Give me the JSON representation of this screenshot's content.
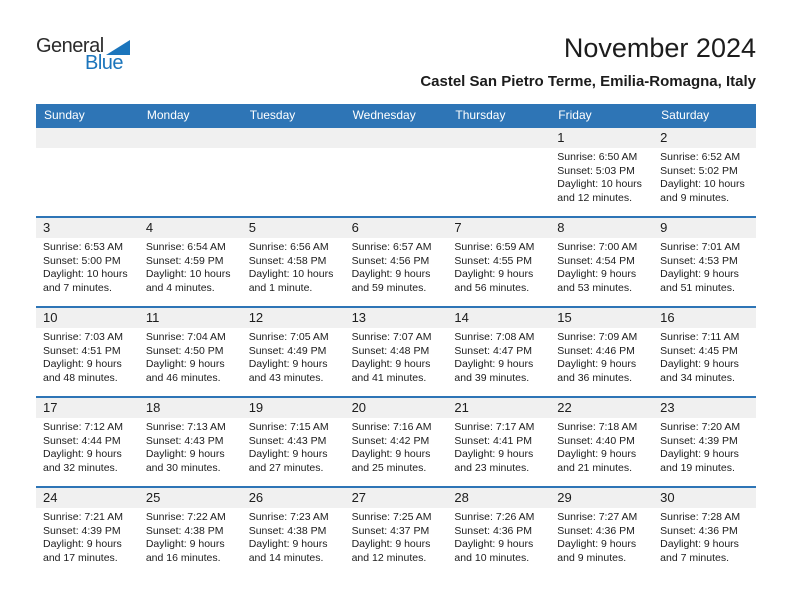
{
  "logo": {
    "general": "General",
    "blue": "Blue",
    "triangle_color": "#1b75bc"
  },
  "page": {
    "title": "November 2024",
    "subtitle": "Castel San Pietro Terme, Emilia-Romagna, Italy"
  },
  "colors": {
    "header_blue": "#2e75b6",
    "week_separator_blue": "#2e75b6",
    "day_band_gray": "#f0f0f0",
    "logo_blue": "#1b75bc"
  },
  "weekday_headers": [
    "Sunday",
    "Monday",
    "Tuesday",
    "Wednesday",
    "Thursday",
    "Friday",
    "Saturday"
  ],
  "weeks": [
    [
      null,
      null,
      null,
      null,
      null,
      {
        "day": "1",
        "lines": [
          "Sunrise: 6:50 AM",
          "Sunset: 5:03 PM",
          "Daylight: 10 hours and 12 minutes."
        ]
      },
      {
        "day": "2",
        "lines": [
          "Sunrise: 6:52 AM",
          "Sunset: 5:02 PM",
          "Daylight: 10 hours and 9 minutes."
        ]
      }
    ],
    [
      {
        "day": "3",
        "lines": [
          "Sunrise: 6:53 AM",
          "Sunset: 5:00 PM",
          "Daylight: 10 hours and 7 minutes."
        ]
      },
      {
        "day": "4",
        "lines": [
          "Sunrise: 6:54 AM",
          "Sunset: 4:59 PM",
          "Daylight: 10 hours and 4 minutes."
        ]
      },
      {
        "day": "5",
        "lines": [
          "Sunrise: 6:56 AM",
          "Sunset: 4:58 PM",
          "Daylight: 10 hours and 1 minute."
        ]
      },
      {
        "day": "6",
        "lines": [
          "Sunrise: 6:57 AM",
          "Sunset: 4:56 PM",
          "Daylight: 9 hours and 59 minutes."
        ]
      },
      {
        "day": "7",
        "lines": [
          "Sunrise: 6:59 AM",
          "Sunset: 4:55 PM",
          "Daylight: 9 hours and 56 minutes."
        ]
      },
      {
        "day": "8",
        "lines": [
          "Sunrise: 7:00 AM",
          "Sunset: 4:54 PM",
          "Daylight: 9 hours and 53 minutes."
        ]
      },
      {
        "day": "9",
        "lines": [
          "Sunrise: 7:01 AM",
          "Sunset: 4:53 PM",
          "Daylight: 9 hours and 51 minutes."
        ]
      }
    ],
    [
      {
        "day": "10",
        "lines": [
          "Sunrise: 7:03 AM",
          "Sunset: 4:51 PM",
          "Daylight: 9 hours and 48 minutes."
        ]
      },
      {
        "day": "11",
        "lines": [
          "Sunrise: 7:04 AM",
          "Sunset: 4:50 PM",
          "Daylight: 9 hours and 46 minutes."
        ]
      },
      {
        "day": "12",
        "lines": [
          "Sunrise: 7:05 AM",
          "Sunset: 4:49 PM",
          "Daylight: 9 hours and 43 minutes."
        ]
      },
      {
        "day": "13",
        "lines": [
          "Sunrise: 7:07 AM",
          "Sunset: 4:48 PM",
          "Daylight: 9 hours and 41 minutes."
        ]
      },
      {
        "day": "14",
        "lines": [
          "Sunrise: 7:08 AM",
          "Sunset: 4:47 PM",
          "Daylight: 9 hours and 39 minutes."
        ]
      },
      {
        "day": "15",
        "lines": [
          "Sunrise: 7:09 AM",
          "Sunset: 4:46 PM",
          "Daylight: 9 hours and 36 minutes."
        ]
      },
      {
        "day": "16",
        "lines": [
          "Sunrise: 7:11 AM",
          "Sunset: 4:45 PM",
          "Daylight: 9 hours and 34 minutes."
        ]
      }
    ],
    [
      {
        "day": "17",
        "lines": [
          "Sunrise: 7:12 AM",
          "Sunset: 4:44 PM",
          "Daylight: 9 hours and 32 minutes."
        ]
      },
      {
        "day": "18",
        "lines": [
          "Sunrise: 7:13 AM",
          "Sunset: 4:43 PM",
          "Daylight: 9 hours and 30 minutes."
        ]
      },
      {
        "day": "19",
        "lines": [
          "Sunrise: 7:15 AM",
          "Sunset: 4:43 PM",
          "Daylight: 9 hours and 27 minutes."
        ]
      },
      {
        "day": "20",
        "lines": [
          "Sunrise: 7:16 AM",
          "Sunset: 4:42 PM",
          "Daylight: 9 hours and 25 minutes."
        ]
      },
      {
        "day": "21",
        "lines": [
          "Sunrise: 7:17 AM",
          "Sunset: 4:41 PM",
          "Daylight: 9 hours and 23 minutes."
        ]
      },
      {
        "day": "22",
        "lines": [
          "Sunrise: 7:18 AM",
          "Sunset: 4:40 PM",
          "Daylight: 9 hours and 21 minutes."
        ]
      },
      {
        "day": "23",
        "lines": [
          "Sunrise: 7:20 AM",
          "Sunset: 4:39 PM",
          "Daylight: 9 hours and 19 minutes."
        ]
      }
    ],
    [
      {
        "day": "24",
        "lines": [
          "Sunrise: 7:21 AM",
          "Sunset: 4:39 PM",
          "Daylight: 9 hours and 17 minutes."
        ]
      },
      {
        "day": "25",
        "lines": [
          "Sunrise: 7:22 AM",
          "Sunset: 4:38 PM",
          "Daylight: 9 hours and 16 minutes."
        ]
      },
      {
        "day": "26",
        "lines": [
          "Sunrise: 7:23 AM",
          "Sunset: 4:38 PM",
          "Daylight: 9 hours and 14 minutes."
        ]
      },
      {
        "day": "27",
        "lines": [
          "Sunrise: 7:25 AM",
          "Sunset: 4:37 PM",
          "Daylight: 9 hours and 12 minutes."
        ]
      },
      {
        "day": "28",
        "lines": [
          "Sunrise: 7:26 AM",
          "Sunset: 4:36 PM",
          "Daylight: 9 hours and 10 minutes."
        ]
      },
      {
        "day": "29",
        "lines": [
          "Sunrise: 7:27 AM",
          "Sunset: 4:36 PM",
          "Daylight: 9 hours and 9 minutes."
        ]
      },
      {
        "day": "30",
        "lines": [
          "Sunrise: 7:28 AM",
          "Sunset: 4:36 PM",
          "Daylight: 9 hours and 7 minutes."
        ]
      }
    ]
  ]
}
